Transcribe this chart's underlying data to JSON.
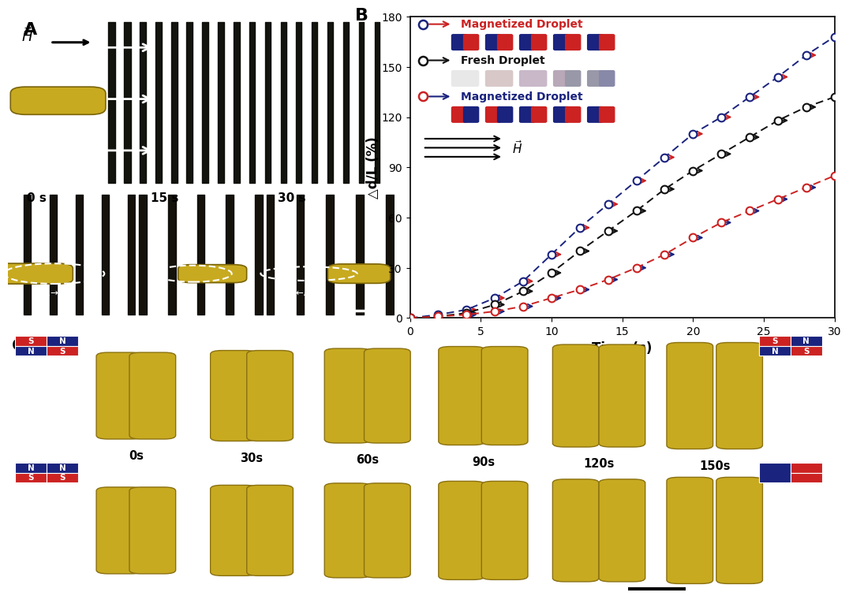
{
  "fig_width": 10.8,
  "fig_height": 7.54,
  "panel_A_bg": "#c4afc4",
  "panel_A_bg2": "#c4b0c8",
  "plot_B": {
    "xlabel": "Time (s)",
    "ylabel": "△d/L (%)",
    "xlim": [
      0,
      30
    ],
    "ylim": [
      0,
      180
    ],
    "xticks": [
      0,
      5,
      10,
      15,
      20,
      25,
      30
    ],
    "yticks": [
      0,
      30,
      60,
      90,
      120,
      150,
      180
    ],
    "blue_x": [
      0,
      2,
      4,
      6,
      8,
      10,
      12,
      14,
      16,
      18,
      20,
      22,
      24,
      26,
      28,
      30
    ],
    "blue_y": [
      0,
      2,
      5,
      12,
      22,
      38,
      54,
      68,
      82,
      96,
      110,
      120,
      132,
      144,
      157,
      168
    ],
    "black_x": [
      0,
      2,
      4,
      6,
      8,
      10,
      12,
      14,
      16,
      18,
      20,
      22,
      24,
      26,
      28,
      30
    ],
    "black_y": [
      0,
      1,
      3,
      8,
      16,
      27,
      40,
      52,
      64,
      77,
      88,
      98,
      108,
      118,
      126,
      132
    ],
    "red_x": [
      0,
      2,
      4,
      6,
      8,
      10,
      12,
      14,
      16,
      18,
      20,
      22,
      24,
      26,
      28,
      30
    ],
    "red_y": [
      0,
      1,
      2,
      4,
      7,
      12,
      17,
      23,
      30,
      38,
      48,
      57,
      64,
      71,
      78,
      85
    ],
    "blue_color": "#1a237e",
    "black_color": "#111111",
    "red_color": "#cc2222",
    "bg_color": "#ffffff"
  },
  "magnet_S_color": "#cc2222",
  "magnet_N_color": "#1a237e",
  "droplet_fill": "#c8aa20",
  "droplet_edge": "#8a7010",
  "times_C": [
    "0s",
    "30s",
    "60s",
    "90s",
    "120s",
    "150s"
  ]
}
